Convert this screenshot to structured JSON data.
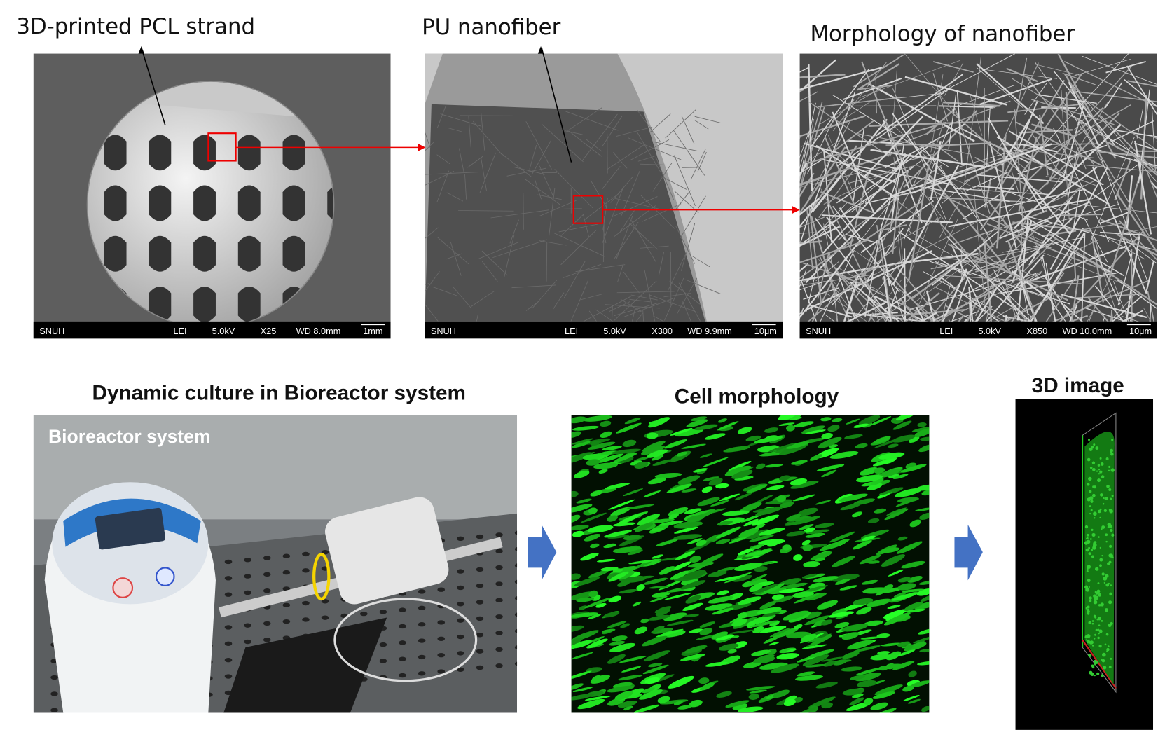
{
  "panels_top": [
    {
      "title": "3D-printed PCL strand",
      "info": [
        "SNUH",
        "LEI",
        "5.0kV",
        "X25",
        "WD 8.0mm",
        "1mm"
      ]
    },
    {
      "title": "PU nanofiber",
      "info": [
        "SNUH",
        "LEI",
        "5.0kV",
        "X300",
        "WD 9.9mm",
        "10μm"
      ]
    },
    {
      "title": "Morphology of nanofiber",
      "info": [
        "SNUH",
        "LEI",
        "5.0kV",
        "X850",
        "WD 10.0mm",
        "10μm"
      ]
    }
  ],
  "panels_bottom": [
    {
      "title": "Dynamic culture in Bioreactor system",
      "label": "Bioreactor system"
    },
    {
      "title": "Cell morphology"
    },
    {
      "title": "3D image"
    }
  ]
}
